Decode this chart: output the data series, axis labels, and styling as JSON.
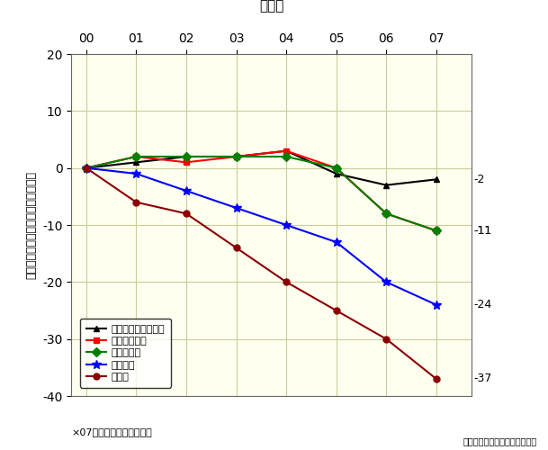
{
  "title": "年　次",
  "ylabel_chars": [
    "指",
    "標",
    "値",
    "（",
    "２",
    "０",
    "０",
    "０",
    "年",
    "基",
    "準",
    "の",
    "相",
    "対",
    "値",
    "）"
  ],
  "x_labels": [
    "00",
    "01",
    "02",
    "03",
    "04",
    "05",
    "06",
    "07"
  ],
  "x_values": [
    0,
    1,
    2,
    3,
    4,
    5,
    6,
    7
  ],
  "ylim": [
    -40,
    20
  ],
  "yticks": [
    -40,
    -30,
    -20,
    -10,
    0,
    10,
    20
  ],
  "background_color": "#fffff0",
  "fig_bg_color": "#ffffff",
  "series": [
    {
      "label": "自動車の総走行距離",
      "color": "#000000",
      "marker": "^",
      "markersize": 5,
      "linewidth": 1.5,
      "values": [
        0,
        1,
        2,
        2,
        3,
        -1,
        -3,
        -2
      ]
    },
    {
      "label": "交通事故件数",
      "color": "#ff0000",
      "marker": "s",
      "markersize": 5,
      "linewidth": 1.5,
      "values": [
        0,
        2,
        1,
        2,
        3,
        0,
        -8,
        -11
      ]
    },
    {
      "label": "死傷者総数",
      "color": "#008000",
      "marker": "D",
      "markersize": 5,
      "linewidth": 1.5,
      "values": [
        0,
        2,
        2,
        2,
        2,
        0,
        -8,
        -11
      ]
    },
    {
      "label": "重傷者数",
      "color": "#0000ff",
      "marker": "*",
      "markersize": 7,
      "linewidth": 1.5,
      "values": [
        0,
        -1,
        -4,
        -7,
        -10,
        -13,
        -20,
        -24
      ]
    },
    {
      "label": "死者数",
      "color": "#8b0000",
      "marker": "o",
      "markersize": 5,
      "linewidth": 1.5,
      "values": [
        0,
        -6,
        -8,
        -14,
        -20,
        -25,
        -30,
        -37
      ]
    }
  ],
  "end_label_values": [
    -2,
    -11,
    -11,
    -24,
    -37
  ],
  "end_labels": [
    "-2",
    "-11",
    "-11",
    "-24",
    "-37"
  ],
  "footnote": "×07年の総走行距離は推定",
  "source": "出典：警察庁資料などより作成",
  "grid_color": "#cccc99"
}
